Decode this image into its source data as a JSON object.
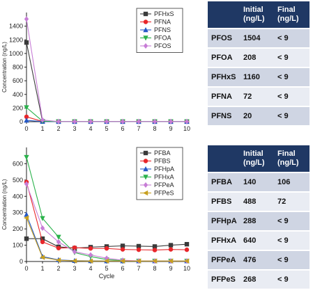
{
  "chart_data": [
    {
      "type": "line",
      "xlabel": "",
      "ylabel": "Concentration (ng/L)",
      "xlim": [
        0,
        10
      ],
      "ylim": [
        0,
        1600
      ],
      "x_ticks": [
        0,
        1,
        2,
        3,
        4,
        5,
        6,
        7,
        8,
        9,
        10
      ],
      "y_ticks": [
        0,
        200,
        400,
        600,
        800,
        1000,
        1200,
        1400
      ],
      "legend_position": "top-right",
      "x": [
        0,
        1,
        2,
        3,
        4,
        5,
        6,
        7,
        8,
        9,
        10
      ],
      "series": [
        {
          "name": "PFHxS",
          "color": "#3a3a3a",
          "marker": "square",
          "values": [
            1160,
            5,
            2,
            2,
            2,
            2,
            2,
            2,
            2,
            2,
            2
          ]
        },
        {
          "name": "PFNA",
          "color": "#e8262a",
          "marker": "circle",
          "values": [
            72,
            3,
            2,
            2,
            2,
            2,
            2,
            2,
            2,
            2,
            2
          ]
        },
        {
          "name": "PFNS",
          "color": "#2458c6",
          "marker": "triangle-up",
          "values": [
            20,
            2,
            1,
            1,
            1,
            1,
            1,
            1,
            1,
            1,
            1
          ]
        },
        {
          "name": "PFOA",
          "color": "#2bb24c",
          "marker": "triangle-down",
          "values": [
            208,
            8,
            2,
            2,
            2,
            2,
            2,
            2,
            2,
            2,
            2
          ]
        },
        {
          "name": "PFOS",
          "color": "#c77dd6",
          "marker": "diamond",
          "values": [
            1504,
            25,
            2,
            2,
            2,
            2,
            2,
            2,
            2,
            2,
            2
          ]
        }
      ]
    },
    {
      "type": "line",
      "xlabel": "Cycle",
      "ylabel": "Concentration (ng/L)",
      "xlim": [
        0,
        10
      ],
      "ylim": [
        0,
        700
      ],
      "x_ticks": [
        0,
        1,
        2,
        3,
        4,
        5,
        6,
        7,
        8,
        9,
        10
      ],
      "y_ticks": [
        0,
        100,
        200,
        300,
        400,
        500,
        600
      ],
      "legend_position": "top-right",
      "x": [
        0,
        1,
        2,
        3,
        4,
        5,
        6,
        7,
        8,
        9,
        10
      ],
      "series": [
        {
          "name": "PFBA",
          "color": "#3a3a3a",
          "marker": "square",
          "values": [
            140,
            140,
            90,
            82,
            88,
            92,
            96,
            94,
            92,
            100,
            106
          ]
        },
        {
          "name": "PFBS",
          "color": "#e8262a",
          "marker": "circle",
          "values": [
            488,
            120,
            82,
            85,
            80,
            80,
            74,
            72,
            70,
            74,
            72
          ]
        },
        {
          "name": "PFHpA",
          "color": "#2458c6",
          "marker": "triangle-up",
          "values": [
            288,
            30,
            10,
            5,
            4,
            3,
            3,
            3,
            3,
            3,
            3
          ]
        },
        {
          "name": "PFHxA",
          "color": "#2bb24c",
          "marker": "triangle-down",
          "values": [
            640,
            265,
            150,
            55,
            30,
            12,
            5,
            3,
            3,
            3,
            3
          ]
        },
        {
          "name": "PFPeA",
          "color": "#c77dd6",
          "marker": "diamond",
          "values": [
            476,
            205,
            120,
            60,
            40,
            20,
            8,
            4,
            3,
            3,
            3
          ]
        },
        {
          "name": "PFPeS",
          "color": "#c8a020",
          "marker": "triangle-left",
          "values": [
            268,
            25,
            8,
            4,
            3,
            3,
            3,
            3,
            3,
            3,
            3
          ]
        }
      ]
    }
  ],
  "tables": {
    "top": {
      "headers": [
        "",
        "Initial\n(ng/L)",
        "Final\n(ng/L)"
      ],
      "rows": [
        [
          "PFOS",
          "1504",
          "< 9"
        ],
        [
          "PFOA",
          "208",
          "< 9"
        ],
        [
          "PFHxS",
          "1160",
          "< 9"
        ],
        [
          "PFNA",
          "72",
          "< 9"
        ],
        [
          "PFNS",
          "20",
          "< 9"
        ]
      ]
    },
    "bottom": {
      "headers": [
        "",
        "Initial\n(ng/L)",
        "Final\n(ng/L)"
      ],
      "rows": [
        [
          "PFBA",
          "140",
          "106"
        ],
        [
          "PFBS",
          "488",
          "72"
        ],
        [
          "PFHpA",
          "288",
          "< 9"
        ],
        [
          "PFHxA",
          "640",
          "< 9"
        ],
        [
          "PFPeA",
          "476",
          "< 9"
        ],
        [
          "PFPeS",
          "268",
          "< 9"
        ]
      ]
    }
  }
}
